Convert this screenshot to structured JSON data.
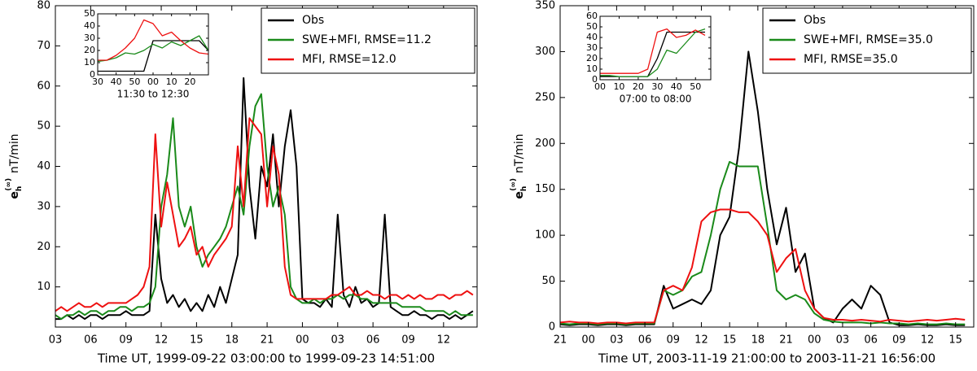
{
  "chart_data": [
    {
      "type": "line",
      "ylabel": {
        "symbol": "e",
        "sub": "h",
        "sup": "(∞)",
        "unit": "nT/min"
      },
      "xlabel": "Time UT, 1999-09-22 03:00:00 to 1999-09-23 14:51:00",
      "xlim": [
        3,
        38.85
      ],
      "ylim": [
        0,
        80
      ],
      "xticks": [
        {
          "value": 3,
          "label": "03"
        },
        {
          "value": 6,
          "label": "06"
        },
        {
          "value": 9,
          "label": "09"
        },
        12,
        15,
        18,
        21,
        {
          "value": 24,
          "label": "00"
        },
        {
          "value": 27,
          "label": "03"
        },
        {
          "value": 30,
          "label": "06"
        },
        {
          "value": 33,
          "label": "09"
        },
        {
          "value": 36,
          "label": "12"
        }
      ],
      "yticks": [
        10,
        20,
        30,
        40,
        50,
        60,
        70,
        80
      ],
      "legend": "upper right",
      "x": [
        3,
        3.5,
        4,
        4.5,
        5,
        5.5,
        6,
        6.5,
        7,
        7.5,
        8,
        8.5,
        9,
        9.5,
        10,
        10.5,
        11,
        11.5,
        12,
        12.5,
        13,
        13.5,
        14,
        14.5,
        15,
        15.5,
        16,
        16.5,
        17,
        17.5,
        18,
        18.5,
        19,
        19.5,
        20,
        20.5,
        21,
        21.5,
        22,
        22.5,
        23,
        23.5,
        24,
        24.5,
        25,
        25.5,
        26,
        26.5,
        27,
        27.5,
        28,
        28.5,
        29,
        29.5,
        30,
        30.5,
        31,
        31.5,
        32,
        32.5,
        33,
        33.5,
        34,
        34.5,
        35,
        35.5,
        36,
        36.5,
        37,
        37.5,
        38,
        38.5
      ],
      "series": [
        {
          "name": "Obs",
          "color": "#000000",
          "values": [
            2,
            2,
            3,
            2,
            3,
            2,
            3,
            3,
            2,
            3,
            3,
            3,
            4,
            3,
            3,
            3,
            4,
            28,
            12,
            6,
            8,
            5,
            7,
            4,
            6,
            4,
            8,
            5,
            10,
            6,
            12,
            18,
            62,
            35,
            22,
            40,
            35,
            48,
            30,
            45,
            54,
            40,
            7,
            6,
            6,
            5,
            7,
            5,
            28,
            8,
            5,
            10,
            6,
            7,
            5,
            6,
            28,
            5,
            4,
            3,
            3,
            4,
            3,
            3,
            2,
            3,
            3,
            2,
            3,
            2,
            3,
            4
          ]
        },
        {
          "name": "SWE+MFI, RMSE=11.2",
          "color": "#1a8a1a",
          "values": [
            3,
            2,
            3,
            3,
            4,
            3,
            4,
            4,
            3,
            4,
            4,
            5,
            5,
            4,
            5,
            5,
            6,
            10,
            30,
            38,
            52,
            30,
            25,
            30,
            20,
            15,
            18,
            20,
            22,
            25,
            30,
            35,
            28,
            45,
            55,
            58,
            40,
            30,
            35,
            28,
            10,
            7,
            6,
            6,
            7,
            6,
            7,
            7,
            8,
            7,
            8,
            8,
            7,
            7,
            6,
            6,
            6,
            6,
            6,
            5,
            5,
            5,
            5,
            4,
            4,
            4,
            4,
            3,
            4,
            3,
            3,
            3
          ]
        },
        {
          "name": "MFI, RMSE=12.0",
          "color": "#ee1111",
          "values": [
            4,
            5,
            4,
            5,
            6,
            5,
            5,
            6,
            5,
            6,
            6,
            6,
            6,
            7,
            8,
            10,
            15,
            48,
            25,
            36,
            28,
            20,
            22,
            25,
            18,
            20,
            15,
            18,
            20,
            22,
            25,
            45,
            30,
            52,
            50,
            48,
            30,
            45,
            38,
            15,
            8,
            7,
            7,
            7,
            7,
            7,
            7,
            8,
            8,
            9,
            10,
            8,
            8,
            9,
            8,
            8,
            7,
            8,
            8,
            7,
            8,
            7,
            8,
            7,
            7,
            8,
            8,
            7,
            8,
            8,
            9,
            8
          ]
        }
      ],
      "inset": {
        "type": "line",
        "xlabel": "11:30 to 12:30",
        "xlim": [
          30,
          90
        ],
        "ylim": [
          0,
          50
        ],
        "xticks": [
          30,
          40,
          50,
          {
            "value": 60,
            "label": "00"
          },
          {
            "value": 70,
            "label": "10"
          },
          {
            "value": 80,
            "label": "20"
          }
        ],
        "yticks": [
          0,
          10,
          20,
          30,
          40,
          50
        ],
        "x": [
          30,
          35,
          40,
          45,
          50,
          55,
          60,
          65,
          70,
          75,
          80,
          85,
          90
        ],
        "series": [
          {
            "color": "#000000",
            "values": [
              3,
              3,
              3,
              3,
              3,
              3,
              28,
              28,
              28,
              28,
              28,
              28,
              20
            ]
          },
          {
            "color": "#1a8a1a",
            "values": [
              11,
              12,
              14,
              18,
              17,
              20,
              25,
              22,
              27,
              24,
              28,
              32,
              20
            ]
          },
          {
            "color": "#ee1111",
            "values": [
              12,
              12,
              16,
              22,
              30,
              45,
              42,
              32,
              35,
              28,
              22,
              18,
              17
            ]
          }
        ]
      }
    },
    {
      "type": "line",
      "ylabel": {
        "symbol": "e",
        "sub": "h",
        "sup": "(∞)",
        "unit": "nT/min"
      },
      "xlabel": "Time UT, 2003-11-19 21:00:00 to 2003-11-21 16:56:00",
      "xlim": [
        21,
        64.93
      ],
      "ylim": [
        0,
        350
      ],
      "xticks": [
        21,
        {
          "value": 24,
          "label": "00"
        },
        {
          "value": 27,
          "label": "03"
        },
        {
          "value": 30,
          "label": "06"
        },
        {
          "value": 33,
          "label": "09"
        },
        {
          "value": 36,
          "label": "12"
        },
        {
          "value": 39,
          "label": "15"
        },
        {
          "value": 42,
          "label": "18"
        },
        {
          "value": 45,
          "label": "21"
        },
        {
          "value": 48,
          "label": "00"
        },
        {
          "value": 51,
          "label": "03"
        },
        {
          "value": 54,
          "label": "06"
        },
        {
          "value": 57,
          "label": "09"
        },
        {
          "value": 60,
          "label": "12"
        },
        {
          "value": 63,
          "label": "15"
        }
      ],
      "yticks": [
        0,
        50,
        100,
        150,
        200,
        250,
        300,
        350
      ],
      "legend": "upper right",
      "x": [
        21,
        22,
        23,
        24,
        25,
        26,
        27,
        28,
        29,
        30,
        31,
        32,
        33,
        34,
        35,
        36,
        37,
        38,
        39,
        40,
        41,
        42,
        43,
        44,
        45,
        46,
        47,
        48,
        49,
        50,
        51,
        52,
        53,
        54,
        55,
        56,
        57,
        58,
        59,
        60,
        61,
        62,
        63,
        64
      ],
      "series": [
        {
          "name": "Obs",
          "color": "#000000",
          "values": [
            3,
            2,
            3,
            3,
            2,
            3,
            3,
            2,
            3,
            3,
            3,
            45,
            20,
            25,
            30,
            25,
            40,
            100,
            120,
            195,
            300,
            235,
            150,
            90,
            130,
            60,
            80,
            20,
            10,
            5,
            20,
            30,
            20,
            45,
            35,
            5,
            2,
            2,
            3,
            2,
            2,
            3,
            2,
            2
          ]
        },
        {
          "name": "SWE+MFI, RMSE=35.0",
          "color": "#1a8a1a",
          "values": [
            4,
            3,
            4,
            4,
            3,
            4,
            4,
            3,
            4,
            4,
            4,
            40,
            35,
            40,
            55,
            60,
            100,
            150,
            180,
            175,
            175,
            175,
            110,
            40,
            30,
            35,
            30,
            15,
            8,
            6,
            5,
            5,
            5,
            4,
            5,
            4,
            4,
            3,
            4,
            3,
            3,
            4,
            3,
            3
          ]
        },
        {
          "name": "MFI, RMSE=35.0",
          "color": "#ee1111",
          "values": [
            5,
            6,
            5,
            5,
            4,
            5,
            5,
            4,
            5,
            5,
            5,
            40,
            45,
            40,
            65,
            115,
            125,
            128,
            128,
            125,
            125,
            115,
            100,
            60,
            75,
            85,
            40,
            20,
            10,
            8,
            8,
            7,
            8,
            7,
            6,
            8,
            7,
            6,
            7,
            8,
            7,
            8,
            9,
            8
          ]
        }
      ],
      "inset": {
        "type": "line",
        "xlabel": "07:00 to 08:00",
        "xlim": [
          0,
          58
        ],
        "ylim": [
          0,
          60
        ],
        "xticks": [
          {
            "value": 0,
            "label": "00"
          },
          10,
          20,
          30,
          40,
          50
        ],
        "yticks": [
          0,
          10,
          20,
          30,
          40,
          50,
          60
        ],
        "x": [
          0,
          5,
          10,
          15,
          20,
          25,
          30,
          35,
          40,
          45,
          50,
          55
        ],
        "series": [
          {
            "color": "#000000",
            "values": [
              3,
              3,
              3,
              3,
              3,
              3,
              20,
              45,
              45,
              45,
              45,
              45
            ]
          },
          {
            "color": "#1a8a1a",
            "values": [
              4,
              4,
              3,
              3,
              3,
              3,
              10,
              28,
              25,
              35,
              45,
              48
            ]
          },
          {
            "color": "#ee1111",
            "values": [
              6,
              6,
              6,
              6,
              6,
              10,
              45,
              48,
              40,
              42,
              47,
              42
            ]
          }
        ]
      }
    }
  ]
}
